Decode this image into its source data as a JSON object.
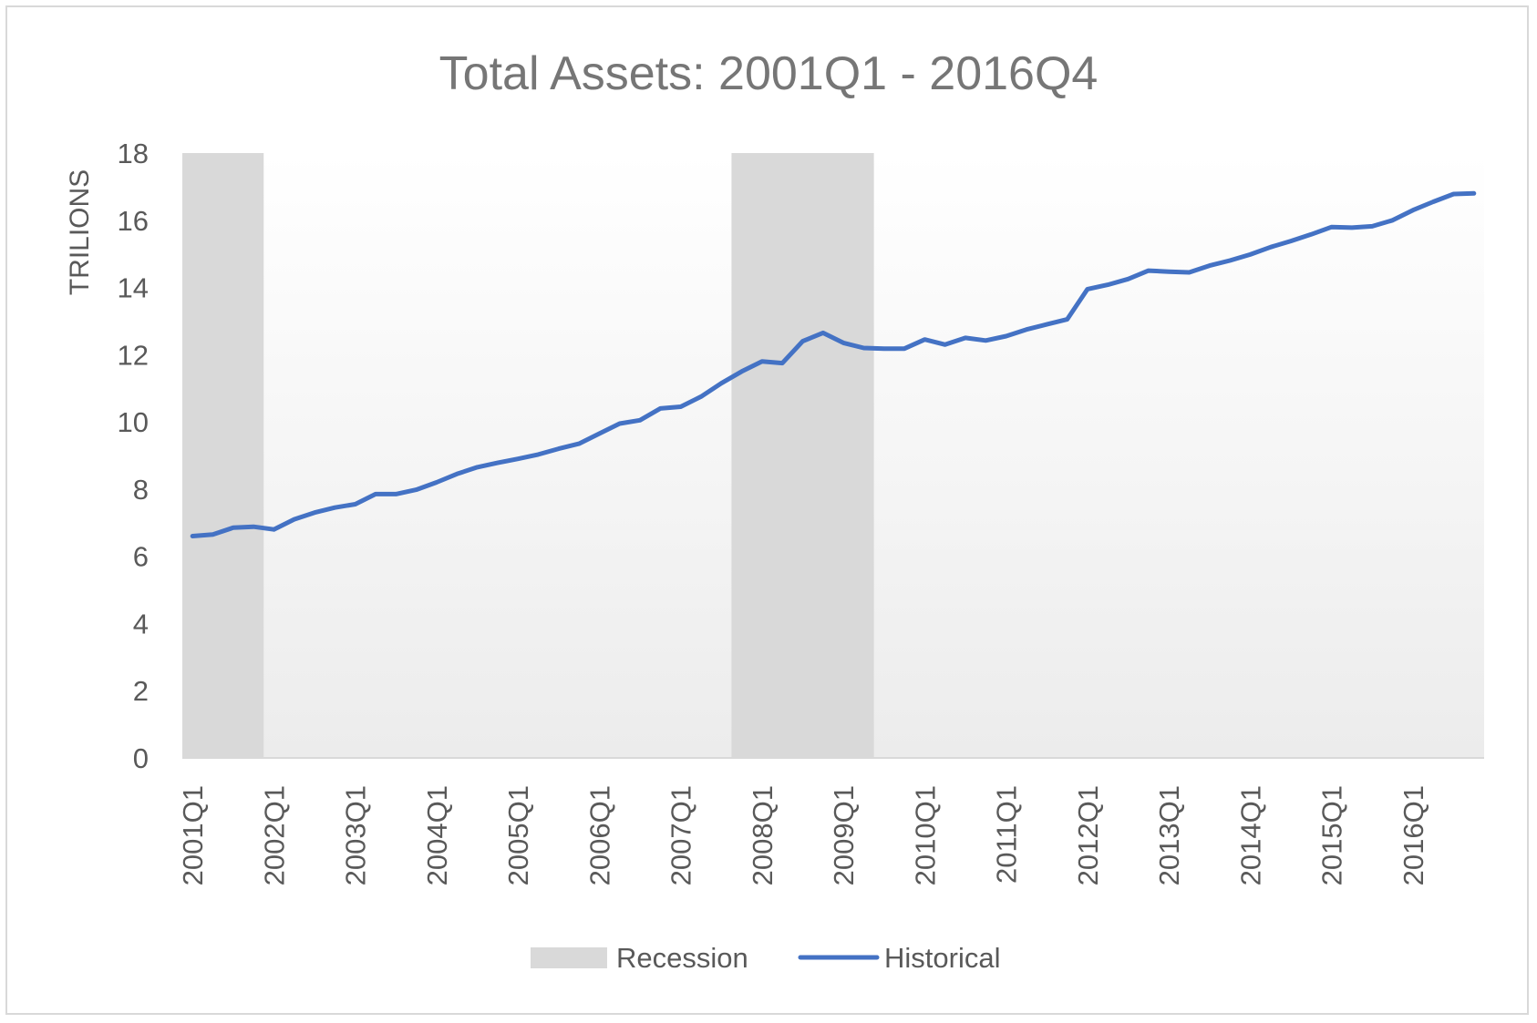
{
  "chart_data": {
    "type": "line",
    "title": "Total Assets: 2001Q1 - 2016Q4",
    "ylabel": "TRILIONS",
    "xlabel": "",
    "ylim": [
      0,
      18
    ],
    "yticks": [
      0,
      2,
      4,
      6,
      8,
      10,
      12,
      14,
      16,
      18
    ],
    "x_tick_labels": [
      "2001Q1",
      "2002Q1",
      "2003Q1",
      "2004Q1",
      "2005Q1",
      "2006Q1",
      "2007Q1",
      "2008Q1",
      "2009Q1",
      "2010Q1",
      "2011Q1",
      "2012Q1",
      "2013Q1",
      "2014Q1",
      "2015Q1",
      "2016Q1"
    ],
    "quarters": [
      "2001Q1",
      "2001Q2",
      "2001Q3",
      "2001Q4",
      "2002Q1",
      "2002Q2",
      "2002Q3",
      "2002Q4",
      "2003Q1",
      "2003Q2",
      "2003Q3",
      "2003Q4",
      "2004Q1",
      "2004Q2",
      "2004Q3",
      "2004Q4",
      "2005Q1",
      "2005Q2",
      "2005Q3",
      "2005Q4",
      "2006Q1",
      "2006Q2",
      "2006Q3",
      "2006Q4",
      "2007Q1",
      "2007Q2",
      "2007Q3",
      "2007Q4",
      "2008Q1",
      "2008Q2",
      "2008Q3",
      "2008Q4",
      "2009Q1",
      "2009Q2",
      "2009Q3",
      "2009Q4",
      "2010Q1",
      "2010Q2",
      "2010Q3",
      "2010Q4",
      "2011Q1",
      "2011Q2",
      "2011Q3",
      "2011Q4",
      "2012Q1",
      "2012Q2",
      "2012Q3",
      "2012Q4",
      "2013Q1",
      "2013Q2",
      "2013Q3",
      "2013Q4",
      "2014Q1",
      "2014Q2",
      "2014Q3",
      "2014Q4",
      "2015Q1",
      "2015Q2",
      "2015Q3",
      "2015Q4",
      "2016Q1",
      "2016Q2",
      "2016Q3",
      "2016Q4"
    ],
    "series": [
      {
        "name": "Historical",
        "color": "#4472c4",
        "values": [
          6.6,
          6.65,
          6.85,
          6.88,
          6.8,
          7.1,
          7.3,
          7.45,
          7.55,
          7.85,
          7.85,
          7.98,
          8.2,
          8.45,
          8.65,
          8.78,
          8.9,
          9.03,
          9.2,
          9.35,
          9.65,
          9.95,
          10.05,
          10.4,
          10.45,
          10.75,
          11.15,
          11.5,
          11.8,
          11.75,
          12.4,
          12.65,
          12.35,
          12.2,
          12.18,
          12.18,
          12.45,
          12.3,
          12.5,
          12.42,
          12.55,
          12.75,
          12.9,
          13.05,
          13.95,
          14.08,
          14.25,
          14.5,
          14.47,
          14.45,
          14.65,
          14.8,
          14.98,
          15.2,
          15.38,
          15.58,
          15.8,
          15.78,
          15.82,
          16.0,
          16.3,
          16.55,
          16.78,
          16.8
        ]
      }
    ],
    "recession_bands": [
      {
        "name": "Recession",
        "start": "2001Q1",
        "end": "2001Q4",
        "color": "#d9d9d9"
      },
      {
        "name": "Recession",
        "start": "2007Q4",
        "end": "2009Q2",
        "color": "#d9d9d9"
      }
    ],
    "legend": {
      "position": "bottom",
      "items": [
        {
          "label": "Recession",
          "kind": "band",
          "color": "#d9d9d9"
        },
        {
          "label": "Historical",
          "kind": "line",
          "color": "#4472c4"
        }
      ]
    },
    "grid": false,
    "colors": {
      "line": "#4472c4",
      "recession": "#d9d9d9",
      "axis": "#d9d9d9",
      "text": "#595959",
      "title": "#767676"
    }
  }
}
